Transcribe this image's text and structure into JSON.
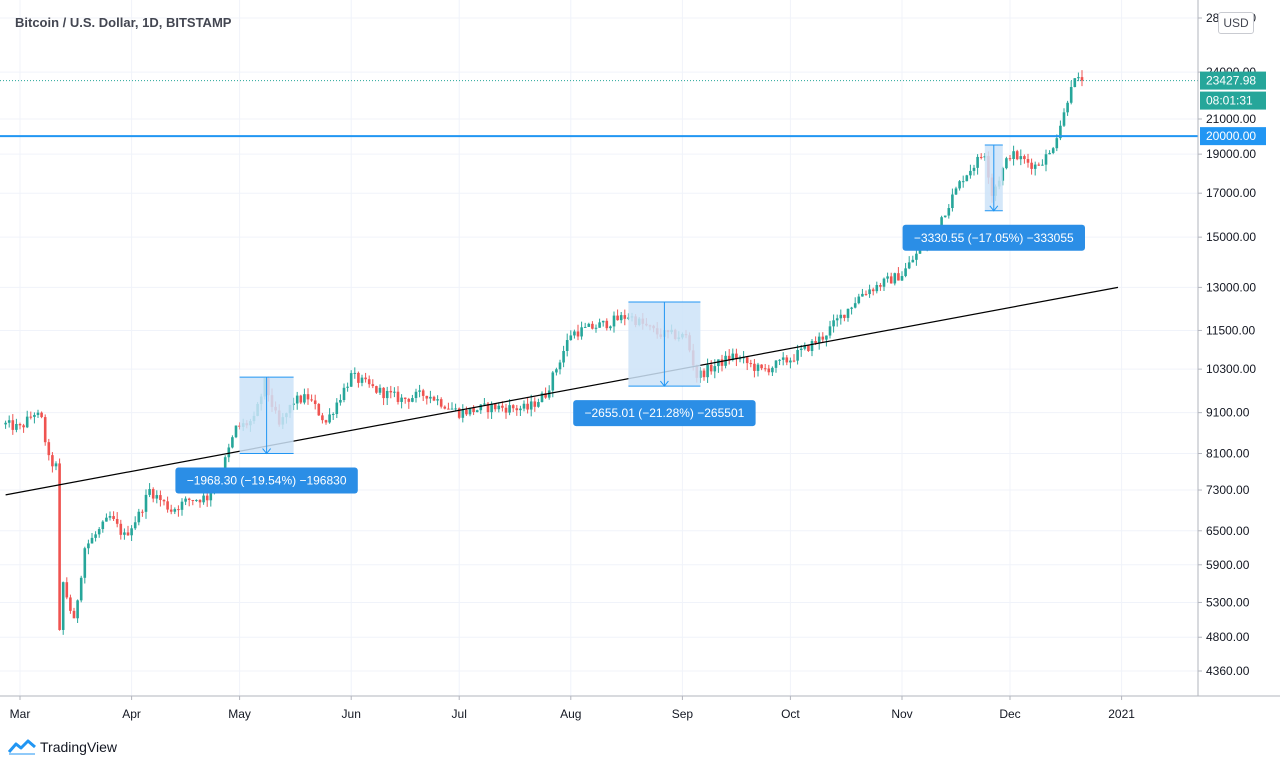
{
  "header": {
    "title": "Bitcoin / U.S. Dollar, 1D, BITSTAMP",
    "currency": "USD"
  },
  "brand": {
    "name": "TradingView"
  },
  "colors": {
    "up": "#26a69a",
    "down": "#ef5350",
    "measure_fill": "#cce3f8",
    "measure_stroke": "#2196f3",
    "level_line": "#2196f3",
    "trend_line": "#000000",
    "label_bg": "#2b8ee6"
  },
  "chart_data": {
    "type": "candlestick",
    "title": "Bitcoin / U.S. Dollar, 1D, BITSTAMP",
    "price_scale": "log",
    "y_ticks": [
      "4360.00",
      "4800.00",
      "5300.00",
      "5900.00",
      "6500.00",
      "7300.00",
      "8100.00",
      "9100.00",
      "10300.00",
      "11500.00",
      "13000.00",
      "15000.00",
      "17000.00",
      "19000.00",
      "21000.00",
      "24000.00",
      "28000.00"
    ],
    "x_ticks": [
      "Mar",
      "Apr",
      "May",
      "Jun",
      "Jul",
      "Aug",
      "Sep",
      "Oct",
      "Nov",
      "Dec",
      "2021"
    ],
    "last_price": "23427.98",
    "countdown": "08:01:31",
    "horizontal_level": {
      "value": 20000,
      "label": "20000.00"
    },
    "trend_line": {
      "from": {
        "date": "2020-02-26",
        "price": 7200
      },
      "to": {
        "date": "2020-12-31",
        "price": 13000
      }
    },
    "measurements": [
      {
        "label": "−1968.30 (−19.54%) −196830",
        "start": "2020-05-01",
        "end": "2020-05-16",
        "high": 10070,
        "low": 8100
      },
      {
        "label": "−2655.01 (−21.28%) −265501",
        "start": "2020-08-17",
        "end": "2020-09-06",
        "high": 12470,
        "low": 9815
      },
      {
        "label": "−3330.55 (−17.05%) −333055",
        "start": "2020-11-24",
        "end": "2020-11-29",
        "high": 19500,
        "low": 16170
      }
    ],
    "series_close": [
      {
        "d": "2020-02-26",
        "c": 8800
      },
      {
        "d": "2020-03-01",
        "c": 8700
      },
      {
        "d": "2020-03-05",
        "c": 9100
      },
      {
        "d": "2020-03-07",
        "c": 8900
      },
      {
        "d": "2020-03-09",
        "c": 7950
      },
      {
        "d": "2020-03-11",
        "c": 7800
      },
      {
        "d": "2020-03-12",
        "c": 4850
      },
      {
        "d": "2020-03-13",
        "c": 5600
      },
      {
        "d": "2020-03-16",
        "c": 5000
      },
      {
        "d": "2020-03-19",
        "c": 6200
      },
      {
        "d": "2020-03-23",
        "c": 6500
      },
      {
        "d": "2020-03-26",
        "c": 6750
      },
      {
        "d": "2020-03-30",
        "c": 6400
      },
      {
        "d": "2020-04-03",
        "c": 6800
      },
      {
        "d": "2020-04-06",
        "c": 7300
      },
      {
        "d": "2020-04-12",
        "c": 6900
      },
      {
        "d": "2020-04-17",
        "c": 7100
      },
      {
        "d": "2020-04-22",
        "c": 7150
      },
      {
        "d": "2020-04-26",
        "c": 7700
      },
      {
        "d": "2020-04-30",
        "c": 8700
      },
      {
        "d": "2020-05-05",
        "c": 8900
      },
      {
        "d": "2020-05-08",
        "c": 9900
      },
      {
        "d": "2020-05-12",
        "c": 8750
      },
      {
        "d": "2020-05-16",
        "c": 9400
      },
      {
        "d": "2020-05-20",
        "c": 9500
      },
      {
        "d": "2020-05-25",
        "c": 8850
      },
      {
        "d": "2020-06-01",
        "c": 10100
      },
      {
        "d": "2020-06-08",
        "c": 9700
      },
      {
        "d": "2020-06-15",
        "c": 9450
      },
      {
        "d": "2020-06-22",
        "c": 9600
      },
      {
        "d": "2020-07-01",
        "c": 9100
      },
      {
        "d": "2020-07-10",
        "c": 9250
      },
      {
        "d": "2020-07-20",
        "c": 9200
      },
      {
        "d": "2020-07-25",
        "c": 9600
      },
      {
        "d": "2020-08-01",
        "c": 11400
      },
      {
        "d": "2020-08-10",
        "c": 11700
      },
      {
        "d": "2020-08-17",
        "c": 12000
      },
      {
        "d": "2020-08-25",
        "c": 11400
      },
      {
        "d": "2020-09-02",
        "c": 11300
      },
      {
        "d": "2020-09-05",
        "c": 10100
      },
      {
        "d": "2020-09-15",
        "c": 10700
      },
      {
        "d": "2020-09-23",
        "c": 10250
      },
      {
        "d": "2020-10-01",
        "c": 10600
      },
      {
        "d": "2020-10-10",
        "c": 11300
      },
      {
        "d": "2020-10-21",
        "c": 12800
      },
      {
        "d": "2020-11-01",
        "c": 13500
      },
      {
        "d": "2020-11-10",
        "c": 15300
      },
      {
        "d": "2020-11-18",
        "c": 17800
      },
      {
        "d": "2020-11-24",
        "c": 19100
      },
      {
        "d": "2020-11-26",
        "c": 17000
      },
      {
        "d": "2020-12-01",
        "c": 19000
      },
      {
        "d": "2020-12-08",
        "c": 18400
      },
      {
        "d": "2020-12-12",
        "c": 19000
      },
      {
        "d": "2020-12-16",
        "c": 21300
      },
      {
        "d": "2020-12-18",
        "c": 23300
      },
      {
        "d": "2020-12-21",
        "c": 23427.98
      }
    ]
  }
}
